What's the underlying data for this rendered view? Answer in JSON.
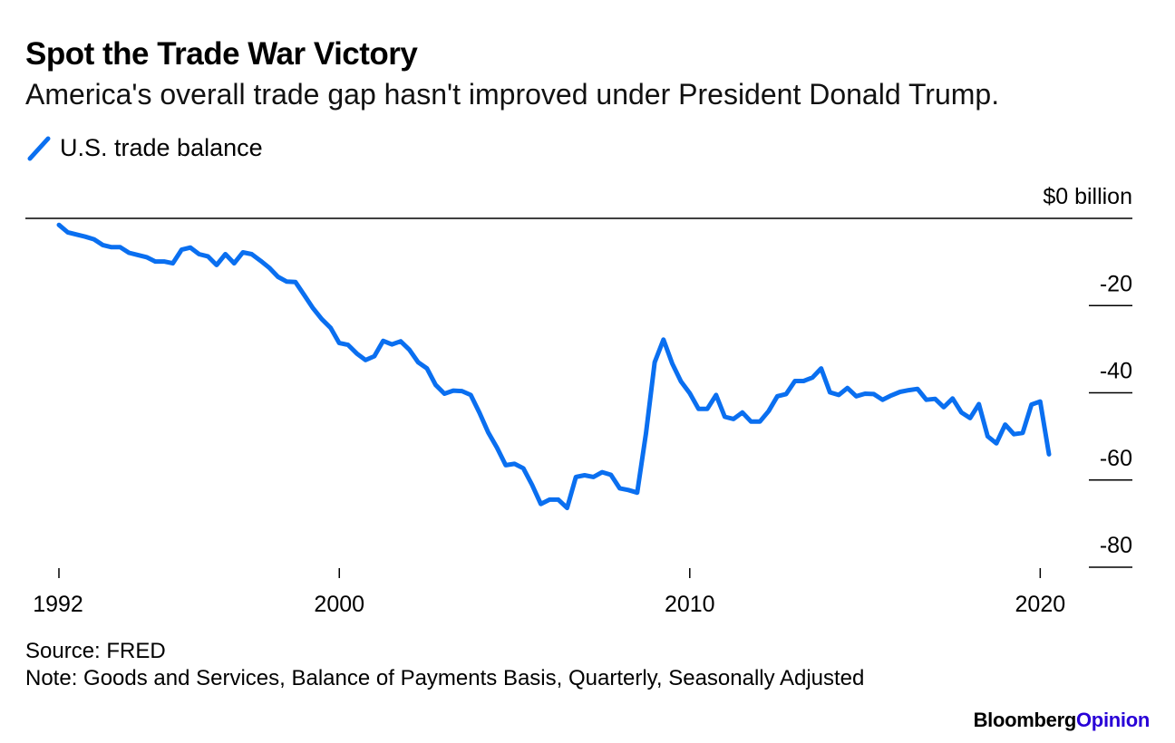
{
  "header": {
    "title": "Spot the Trade War Victory",
    "subtitle": "America's overall trade gap hasn't improved under President Donald Trump."
  },
  "legend": {
    "label": "U.S. trade balance",
    "color": "#0a6ff0"
  },
  "footer": {
    "source": "Source: FRED",
    "note": "Note: Goods and Services, Balance of Payments Basis, Quarterly, Seasonally Adjusted",
    "brand_part1": "Bloomberg",
    "brand_part2": "Opinion"
  },
  "chart_data": {
    "type": "line",
    "title": "Spot the Trade War Victory",
    "xlabel": "",
    "ylabel": "$ billion",
    "xlim": [
      1991.9,
      2023.5
    ],
    "ylim": [
      -80,
      0
    ],
    "x_ticks": [
      1992,
      2000,
      2010,
      2020
    ],
    "x_tick_labels": [
      "1992",
      "2000",
      "2010",
      "2020"
    ],
    "y_ticks": [
      0,
      -20,
      -40,
      -60,
      -80
    ],
    "y_tick_labels": [
      "$0 billion",
      "-20",
      "-40",
      "-60",
      "-80"
    ],
    "series": [
      {
        "name": "U.S. trade balance",
        "color": "#0a6ff0",
        "x": [
          1992.0,
          1992.25,
          1992.5,
          1992.75,
          1993.0,
          1993.25,
          1993.5,
          1993.75,
          1994.0,
          1994.25,
          1994.5,
          1994.75,
          1995.0,
          1995.25,
          1995.5,
          1995.75,
          1996.0,
          1996.25,
          1996.5,
          1996.75,
          1997.0,
          1997.25,
          1997.5,
          1997.75,
          1998.0,
          1998.25,
          1998.5,
          1998.75,
          1999.0,
          1999.25,
          1999.5,
          1999.75,
          2000.0,
          2000.25,
          2000.5,
          2000.75,
          2001.0,
          2001.25,
          2001.5,
          2001.75,
          2002.0,
          2002.25,
          2002.5,
          2002.75,
          2003.0,
          2003.25,
          2003.5,
          2003.75,
          2004.0,
          2004.25,
          2004.5,
          2004.75,
          2005.0,
          2005.25,
          2005.5,
          2005.75,
          2006.0,
          2006.25,
          2006.5,
          2006.75,
          2007.0,
          2007.25,
          2007.5,
          2007.75,
          2008.0,
          2008.25,
          2008.5,
          2008.75,
          2009.0,
          2009.25,
          2009.5,
          2009.75,
          2010.0,
          2010.25,
          2010.5,
          2010.75,
          2011.0,
          2011.25,
          2011.5,
          2011.75,
          2012.0,
          2012.25,
          2012.5,
          2012.75,
          2013.0,
          2013.25,
          2013.5,
          2013.75,
          2014.0,
          2014.25,
          2014.5,
          2014.75,
          2015.0,
          2015.25,
          2015.5,
          2015.75,
          2016.0,
          2016.25,
          2016.5,
          2016.75,
          2017.0,
          2017.25,
          2017.5,
          2017.75,
          2018.0,
          2018.25,
          2018.5,
          2018.75,
          2019.0,
          2019.25,
          2019.5,
          2019.75,
          2020.0,
          2020.25
        ],
        "values": [
          -1.5,
          -3.2,
          -3.7,
          -4.2,
          -4.8,
          -6.1,
          -6.6,
          -6.6,
          -7.9,
          -8.4,
          -8.9,
          -9.9,
          -9.9,
          -10.3,
          -7.2,
          -6.7,
          -8.2,
          -8.7,
          -10.7,
          -8.2,
          -10.3,
          -7.8,
          -8.2,
          -9.7,
          -11.3,
          -13.4,
          -14.5,
          -14.6,
          -17.6,
          -20.6,
          -23.1,
          -25.1,
          -28.6,
          -29.0,
          -31.0,
          -32.5,
          -31.6,
          -28.1,
          -28.9,
          -28.2,
          -30.1,
          -33.0,
          -34.4,
          -38.2,
          -40.2,
          -39.5,
          -39.6,
          -40.5,
          -44.6,
          -49.1,
          -52.6,
          -56.6,
          -56.3,
          -57.3,
          -61.1,
          -65.5,
          -64.5,
          -64.5,
          -66.4,
          -59.3,
          -58.9,
          -59.3,
          -58.2,
          -58.8,
          -61.9,
          -62.3,
          -62.9,
          -49.3,
          -33.0,
          -27.8,
          -33.3,
          -37.4,
          -40.1,
          -43.7,
          -43.7,
          -40.5,
          -45.5,
          -46.0,
          -44.5,
          -46.6,
          -46.6,
          -44.2,
          -40.8,
          -40.3,
          -37.3,
          -37.3,
          -36.5,
          -34.4,
          -39.9,
          -40.5,
          -38.9,
          -40.8,
          -40.2,
          -40.3,
          -41.6,
          -40.6,
          -39.8,
          -39.4,
          -39.1,
          -41.6,
          -41.4,
          -43.3,
          -41.3,
          -44.5,
          -45.8,
          -42.6,
          -50.0,
          -51.6,
          -47.3,
          -49.5,
          -49.2,
          -42.7,
          -42.0,
          -54.1
        ]
      }
    ]
  }
}
